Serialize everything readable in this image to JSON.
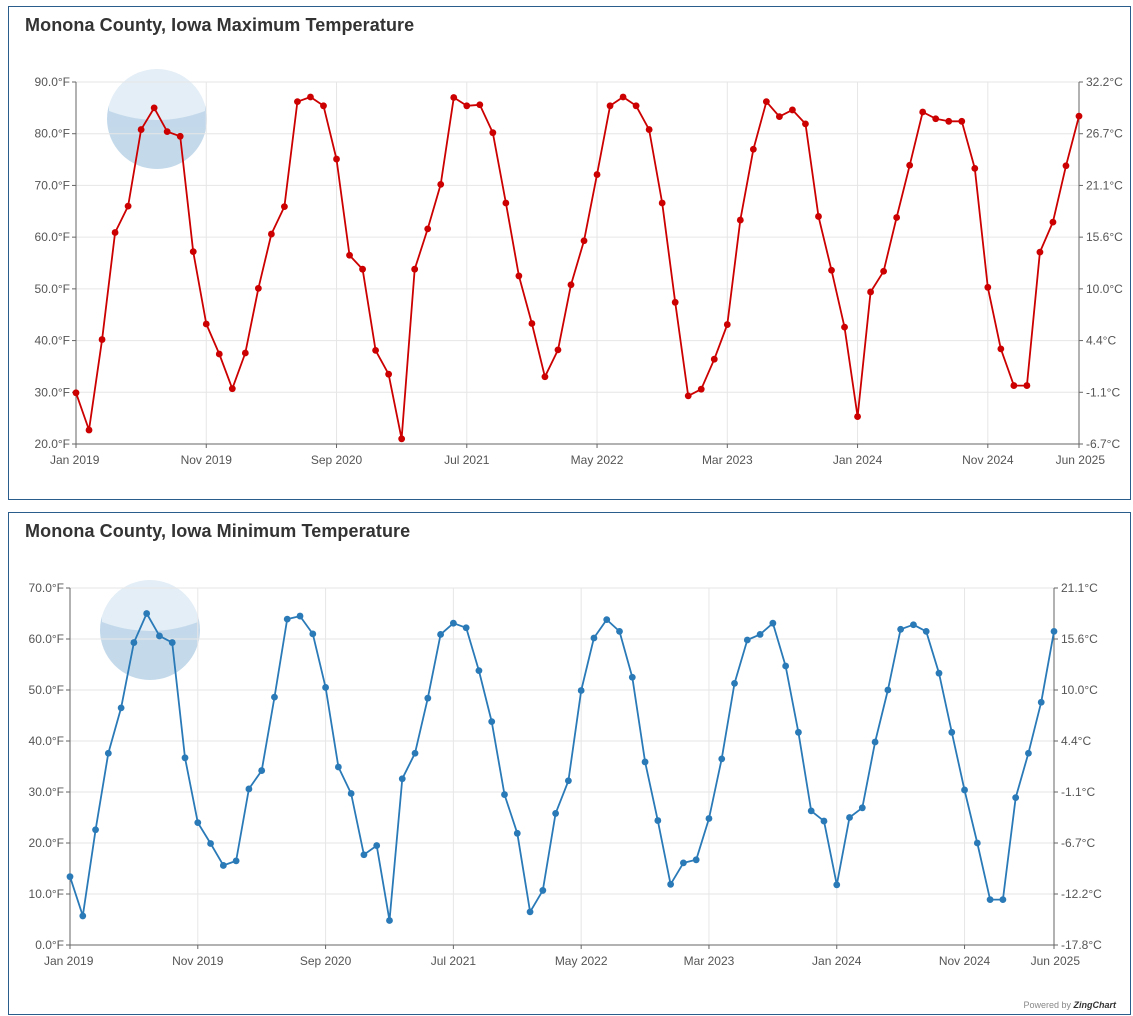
{
  "credit": {
    "prefix": "Powered by",
    "brand": "ZingChart"
  },
  "chart_data": [
    {
      "type": "line",
      "title": "Monona County, Iowa Maximum Temperature",
      "color": "#cc0000",
      "y_unit": "°F",
      "ylim": [
        20,
        90
      ],
      "yticks": [
        "20.0°F",
        "30.0°F",
        "40.0°F",
        "50.0°F",
        "60.0°F",
        "70.0°F",
        "80.0°F",
        "90.0°F"
      ],
      "y2_ticks": [
        "-6.7°C",
        "-1.1°C",
        "4.4°C",
        "10.0°C",
        "15.6°C",
        "21.1°C",
        "26.7°C",
        "32.2°C"
      ],
      "x_ticks": [
        {
          "label": "Jan 2019",
          "index": 0
        },
        {
          "label": "Nov 2019",
          "index": 10
        },
        {
          "label": "Sep 2020",
          "index": 20
        },
        {
          "label": "Jul 2021",
          "index": 30
        },
        {
          "label": "May 2022",
          "index": 40
        },
        {
          "label": "Mar 2023",
          "index": 50
        },
        {
          "label": "Jan 2024",
          "index": 60
        },
        {
          "label": "Nov 2024",
          "index": 70
        },
        {
          "label": "Jun 2025",
          "index": 77
        }
      ],
      "grid": true,
      "series": [
        {
          "values": [
            29.9,
            22.7,
            40.2,
            60.9,
            66.0,
            80.8,
            85.0,
            80.4,
            79.5,
            57.2,
            43.2,
            37.4,
            30.7,
            37.6,
            50.1,
            60.6,
            65.9,
            86.2,
            87.1,
            85.4,
            75.1,
            56.5,
            53.8,
            38.1,
            33.5,
            21.0,
            53.8,
            61.6,
            70.2,
            87.0,
            85.4,
            85.6,
            80.2,
            66.6,
            52.5,
            43.3,
            33.0,
            38.2,
            50.8,
            59.3,
            72.1,
            85.4,
            87.1,
            85.4,
            80.8,
            66.6,
            47.4,
            29.3,
            30.6,
            36.4,
            43.1,
            63.3,
            77.0,
            86.2,
            83.3,
            84.6,
            81.9,
            64.0,
            53.6,
            42.6,
            25.3,
            49.4,
            53.4,
            63.8,
            73.9,
            84.2,
            82.9,
            82.4,
            82.4,
            73.3,
            50.3,
            38.4,
            31.3,
            31.3,
            57.1,
            62.9,
            73.8,
            83.4
          ]
        }
      ]
    },
    {
      "type": "line",
      "title": "Monona County, Iowa Minimum Temperature",
      "color": "#2a7ab8",
      "y_unit": "°F",
      "ylim": [
        0,
        70
      ],
      "yticks": [
        "0.0°F",
        "10.0°F",
        "20.0°F",
        "30.0°F",
        "40.0°F",
        "50.0°F",
        "60.0°F",
        "70.0°F"
      ],
      "y2_ticks": [
        "-17.8°C",
        "-12.2°C",
        "-6.7°C",
        "-1.1°C",
        "4.4°C",
        "10.0°C",
        "15.6°C",
        "21.1°C"
      ],
      "x_ticks": [
        {
          "label": "Jan 2019",
          "index": 0
        },
        {
          "label": "Nov 2019",
          "index": 10
        },
        {
          "label": "Sep 2020",
          "index": 20
        },
        {
          "label": "Jul 2021",
          "index": 30
        },
        {
          "label": "May 2022",
          "index": 40
        },
        {
          "label": "Mar 2023",
          "index": 50
        },
        {
          "label": "Jan 2024",
          "index": 60
        },
        {
          "label": "Nov 2024",
          "index": 70
        },
        {
          "label": "Jun 2025",
          "index": 77
        }
      ],
      "grid": true,
      "series": [
        {
          "values": [
            13.4,
            5.7,
            22.6,
            37.6,
            46.5,
            59.3,
            65.0,
            60.6,
            59.3,
            36.7,
            24.0,
            19.9,
            15.6,
            16.5,
            30.6,
            34.2,
            48.6,
            63.9,
            64.5,
            61.0,
            50.5,
            34.9,
            29.7,
            17.7,
            19.5,
            4.8,
            32.6,
            37.6,
            48.4,
            60.9,
            63.1,
            62.2,
            53.8,
            43.8,
            29.5,
            21.9,
            6.5,
            10.7,
            25.8,
            32.2,
            49.9,
            60.2,
            63.8,
            61.5,
            52.5,
            35.9,
            24.4,
            11.9,
            16.1,
            16.7,
            24.8,
            36.5,
            51.3,
            59.8,
            60.9,
            63.1,
            54.7,
            41.7,
            26.3,
            24.3,
            11.8,
            25.0,
            26.9,
            39.8,
            50.0,
            61.9,
            62.8,
            61.5,
            53.3,
            41.7,
            30.4,
            20.0,
            8.9,
            8.9,
            28.9,
            37.6,
            47.6,
            61.5
          ]
        }
      ]
    }
  ]
}
